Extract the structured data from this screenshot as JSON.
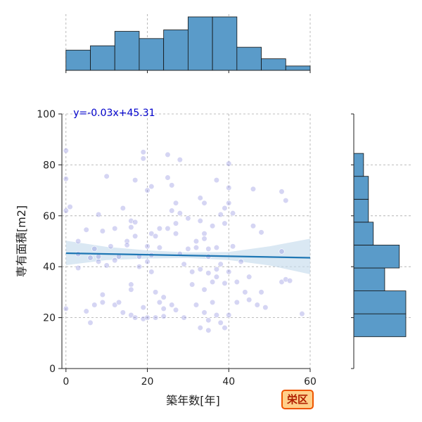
{
  "colors": {
    "hist": "#5a9bc9",
    "point": "#8888dd",
    "regline": "#1f77b4",
    "band": "#c6dcec",
    "grid": "#aaaaaa",
    "equation": "#0000cc"
  },
  "badge": {
    "label": "栄区"
  },
  "chart_data": {
    "type": "scatter",
    "title": "",
    "xlabel": "築年数[年]",
    "ylabel": "専有面積[m2]",
    "xlim": [
      -1,
      60
    ],
    "ylim": [
      0,
      100
    ],
    "xticks": [
      "0",
      "20",
      "40",
      "60"
    ],
    "yticks": [
      "0",
      "20",
      "40",
      "60",
      "80",
      "100"
    ],
    "grid": true,
    "annotation": "y=-0.03x+45.31",
    "regression": {
      "slope": -0.03,
      "intercept": 45.31,
      "x_range": [
        0,
        60
      ]
    },
    "confidence_band": {
      "x": [
        0,
        10,
        20,
        30,
        40,
        50,
        60
      ],
      "lower": [
        40.6,
        42.6,
        43.2,
        43.4,
        42.6,
        40.5,
        37.0
      ],
      "upper": [
        50.2,
        47.8,
        46.4,
        45.6,
        45.8,
        48.0,
        51.0
      ]
    },
    "points": [
      [
        0,
        85.6
      ],
      [
        0,
        74.5
      ],
      [
        0,
        62
      ],
      [
        1,
        63.5
      ],
      [
        0,
        23.5
      ],
      [
        3,
        50
      ],
      [
        3,
        45
      ],
      [
        3,
        39.5
      ],
      [
        5,
        54.5
      ],
      [
        5,
        22.5
      ],
      [
        6,
        18
      ],
      [
        6,
        43.5
      ],
      [
        7,
        25
      ],
      [
        7,
        47
      ],
      [
        8,
        42
      ],
      [
        8,
        44
      ],
      [
        8,
        60.5
      ],
      [
        9,
        54
      ],
      [
        9,
        29
      ],
      [
        9,
        26
      ],
      [
        10,
        75.5
      ],
      [
        10,
        40.5
      ],
      [
        11,
        48
      ],
      [
        12,
        55
      ],
      [
        12,
        42.5
      ],
      [
        12,
        25
      ],
      [
        13,
        44
      ],
      [
        13,
        26
      ],
      [
        14,
        63
      ],
      [
        14,
        22
      ],
      [
        15,
        50
      ],
      [
        15,
        48.5
      ],
      [
        16,
        58
      ],
      [
        16,
        55.5
      ],
      [
        16,
        33
      ],
      [
        16,
        31
      ],
      [
        16,
        21
      ],
      [
        17,
        74
      ],
      [
        17,
        57.5
      ],
      [
        17,
        52
      ],
      [
        17,
        20
      ],
      [
        18,
        44
      ],
      [
        18,
        40
      ],
      [
        19,
        85
      ],
      [
        19,
        82.5
      ],
      [
        19,
        24
      ],
      [
        19,
        19.5
      ],
      [
        20,
        70
      ],
      [
        20,
        48
      ],
      [
        20,
        42
      ],
      [
        20,
        20
      ],
      [
        21,
        71.5
      ],
      [
        21,
        53
      ],
      [
        21,
        44.5
      ],
      [
        21,
        38
      ],
      [
        22,
        52
      ],
      [
        22,
        30
      ],
      [
        22,
        20
      ],
      [
        23,
        55
      ],
      [
        23,
        26
      ],
      [
        23,
        47.5
      ],
      [
        24,
        28
      ],
      [
        24,
        23.5
      ],
      [
        24,
        20.5
      ],
      [
        25,
        84
      ],
      [
        25,
        75
      ],
      [
        25,
        55
      ],
      [
        26,
        72
      ],
      [
        26,
        62
      ],
      [
        26,
        25
      ],
      [
        27,
        65
      ],
      [
        27,
        57
      ],
      [
        27,
        53
      ],
      [
        27,
        23
      ],
      [
        28,
        82
      ],
      [
        28,
        61
      ],
      [
        28,
        45
      ],
      [
        29,
        41
      ],
      [
        29,
        20
      ],
      [
        30,
        59
      ],
      [
        30,
        47
      ],
      [
        31,
        38
      ],
      [
        31,
        33
      ],
      [
        32,
        50
      ],
      [
        32,
        47.5
      ],
      [
        32,
        25
      ],
      [
        33,
        67
      ],
      [
        33,
        58
      ],
      [
        33,
        39
      ],
      [
        33,
        16
      ],
      [
        34,
        65
      ],
      [
        34,
        53
      ],
      [
        34,
        51
      ],
      [
        34,
        31
      ],
      [
        34,
        22
      ],
      [
        35,
        47
      ],
      [
        35,
        44
      ],
      [
        35,
        37.5
      ],
      [
        35,
        19
      ],
      [
        35,
        15
      ],
      [
        36,
        56
      ],
      [
        36,
        34
      ],
      [
        36,
        26
      ],
      [
        37,
        74
      ],
      [
        37,
        47.5
      ],
      [
        37,
        39
      ],
      [
        37,
        36
      ],
      [
        37,
        21
      ],
      [
        38,
        60.5
      ],
      [
        38,
        41
      ],
      [
        38,
        18
      ],
      [
        39,
        63
      ],
      [
        39,
        57
      ],
      [
        39,
        33.5
      ],
      [
        39,
        16
      ],
      [
        40,
        80.5
      ],
      [
        40,
        71
      ],
      [
        40,
        65
      ],
      [
        40,
        38
      ],
      [
        40,
        21
      ],
      [
        41,
        61
      ],
      [
        41,
        48
      ],
      [
        42,
        34
      ],
      [
        42,
        26
      ],
      [
        43,
        42
      ],
      [
        44,
        30
      ],
      [
        45,
        36
      ],
      [
        45,
        27
      ],
      [
        46,
        70.5
      ],
      [
        46,
        56
      ],
      [
        47,
        25
      ],
      [
        48,
        53.5
      ],
      [
        48,
        30
      ],
      [
        49,
        24
      ],
      [
        53,
        69.5
      ],
      [
        53,
        34
      ],
      [
        53,
        46
      ],
      [
        54,
        66
      ],
      [
        54,
        35
      ],
      [
        55,
        34.5
      ],
      [
        58,
        21.5
      ]
    ],
    "x_histogram": {
      "bin_edges": [
        0,
        6,
        12,
        18,
        24,
        30,
        36,
        42,
        48,
        54,
        60
      ],
      "counts": [
        14,
        17,
        27,
        22,
        28,
        37,
        37,
        16,
        8,
        3
      ]
    },
    "y_histogram": {
      "bin_edges": [
        12.5,
        21.5,
        30.5,
        39.5,
        48.5,
        57.5,
        66.5,
        75.5,
        84.5
      ],
      "counts": [
        32,
        32,
        19,
        28,
        12,
        9,
        9,
        6
      ]
    }
  }
}
